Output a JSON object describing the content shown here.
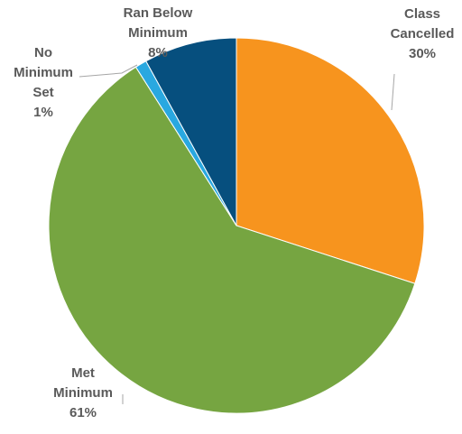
{
  "chart_data": {
    "type": "pie",
    "title": "",
    "start_angle_deg": 0,
    "direction": "clockwise",
    "slices": [
      {
        "category": "Class Cancelled",
        "value": 30,
        "color": "#f7941e",
        "label_lines": [
          "Class",
          "Cancelled"
        ],
        "pct_label": "30%"
      },
      {
        "category": "Met Minimum",
        "value": 61,
        "color": "#76a541",
        "label_lines": [
          "Met",
          "Minimum"
        ],
        "pct_label": "61%"
      },
      {
        "category": "No Minimum Set",
        "value": 1,
        "color": "#29a8e0",
        "label_lines": [
          "No",
          "Minimum",
          "Set"
        ],
        "pct_label": "1%"
      },
      {
        "category": "Ran Below Minimum",
        "value": 8,
        "color": "#064f7e",
        "label_lines": [
          "Ran Below",
          "Minimum"
        ],
        "pct_label": "8%"
      }
    ],
    "legend": "none",
    "data_labels": "outside, with leader lines"
  }
}
